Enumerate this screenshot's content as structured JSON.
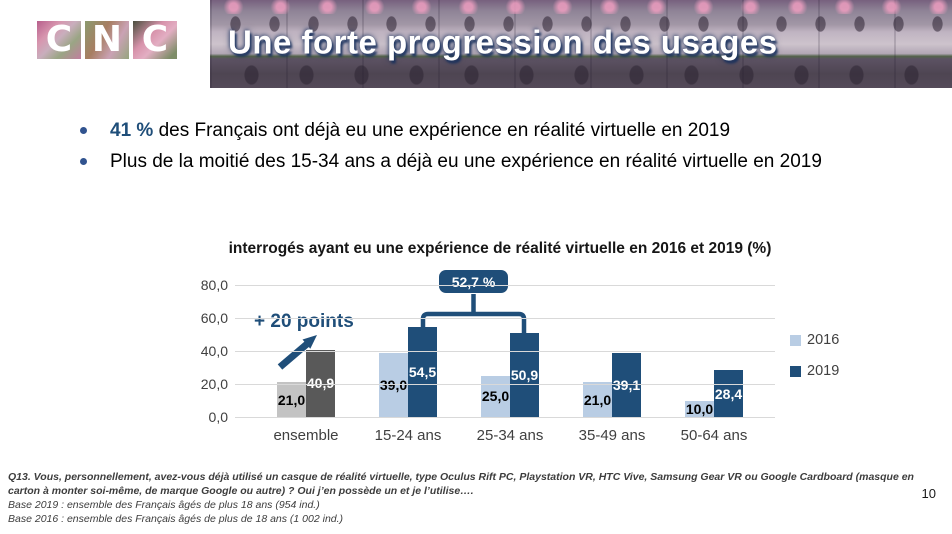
{
  "logo": {
    "name": "CNC",
    "letters": [
      "C",
      "N",
      "C"
    ]
  },
  "header": {
    "title": "Une forte progression des usages"
  },
  "bullets": [
    {
      "highlight": "41 %",
      "rest": " des Français ont déjà eu une expérience en réalité virtuelle en 2019"
    },
    {
      "highlight": "",
      "rest": "Plus de la moitié des 15-34 ans a déjà eu une expérience en réalité virtuelle en 2019"
    }
  ],
  "chart_data": {
    "type": "bar",
    "title": "interrogés ayant eu une expérience de réalité virtuelle en 2016 et 2019  (%)",
    "categories": [
      "ensemble",
      "15-24 ans",
      "25-34 ans",
      "35-49 ans",
      "50-64 ans"
    ],
    "series": [
      {
        "name": "2016",
        "values": [
          21.0,
          39.0,
          25.0,
          21.0,
          10.0
        ],
        "labels": [
          "21,0",
          "39,0",
          "25,0",
          "21,0",
          "10,0"
        ]
      },
      {
        "name": "2019",
        "values": [
          40.9,
          54.5,
          50.9,
          39.1,
          28.4
        ],
        "labels": [
          "40,9",
          "54,5",
          "50,9",
          "39,1",
          "28,4"
        ]
      }
    ],
    "ylim": [
      0,
      80
    ],
    "yticks": [
      {
        "v": 80,
        "label": "80,0"
      },
      {
        "v": 60,
        "label": "60,0"
      },
      {
        "v": 40,
        "label": "40,0"
      },
      {
        "v": 20,
        "label": "20,0"
      },
      {
        "v": 0,
        "label": "0,0"
      }
    ],
    "grid": true,
    "legend_position": "right",
    "legend": [
      {
        "name": "2016",
        "color": "#b9cde4"
      },
      {
        "name": "2019",
        "color": "#1f4e79"
      }
    ],
    "colors": {
      "series_2016": "#b9cde4",
      "series_2019": "#1f4e79",
      "ensemble_2016": "#c3c3c3",
      "ensemble_2019": "#595959",
      "grid": "#d9d9d9",
      "annotation": "#1f4e79",
      "label_2016_text": "#000000",
      "label_2019_text": "#ffffff"
    },
    "annotations": {
      "badge_label": "52,7 %",
      "arrow_label": "+ 20 points"
    }
  },
  "footnote": {
    "question_lines": [
      "Q13. Vous, personnellement, avez-vous déjà utilisé un casque de réalité virtuelle, type Oculus Rift PC, Playstation VR, HTC Vive, Samsung Gear VR ou Google Cardboard (masque en",
      "carton à monter soi-même, de marque Google ou autre) ? Oui j’en possède un et je l’utilise…."
    ],
    "base_lines": [
      "Base 2019 : ensemble des Français âgés de plus 18 ans (954 ind.)",
      "Base 2016 : ensemble des Français âgés de plus de 18 ans (1 002 ind.)"
    ]
  },
  "page_number": "10"
}
